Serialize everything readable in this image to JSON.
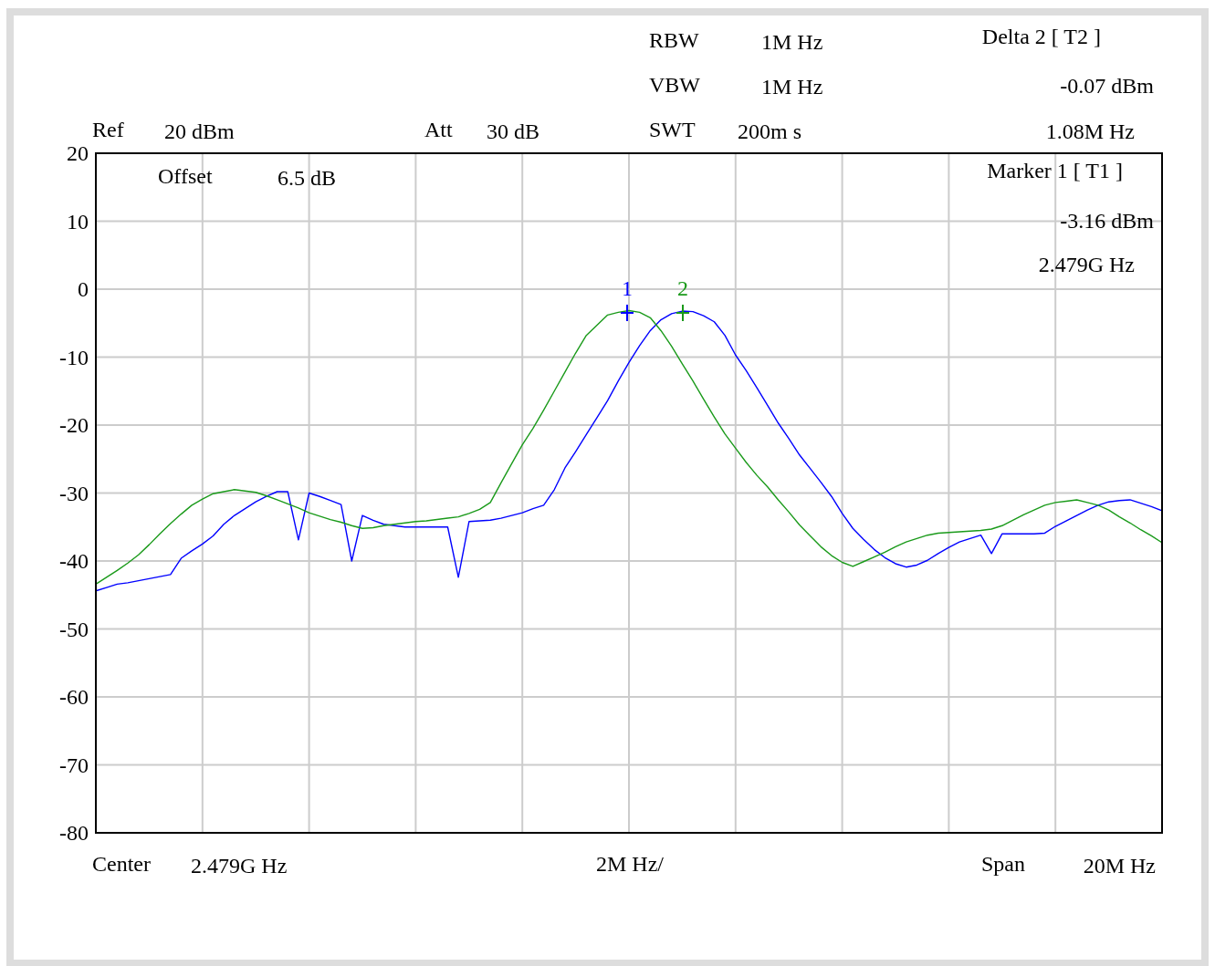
{
  "chart_data": {
    "type": "line",
    "categories": [
      null,
      null,
      null,
      null,
      null,
      null,
      null,
      null,
      null,
      null,
      null,
      null,
      null,
      null,
      null,
      null,
      null,
      null,
      null,
      null,
      null,
      null,
      null,
      null,
      null,
      null,
      null,
      null,
      null,
      null,
      null,
      null,
      null,
      null,
      null,
      null,
      null,
      null,
      null,
      null,
      null,
      null,
      null,
      null,
      null,
      null,
      null,
      null,
      null,
      null,
      null,
      null,
      null,
      null,
      null,
      null,
      null,
      null,
      null,
      null,
      null,
      null,
      null,
      null,
      null,
      null,
      null,
      null,
      null,
      null,
      null,
      null,
      null,
      null,
      null,
      null,
      null,
      null,
      null,
      null,
      null,
      null,
      null,
      null,
      null,
      null,
      null,
      null,
      null,
      null,
      null,
      null,
      null,
      null,
      null,
      null,
      null,
      null,
      null,
      null,
      null
    ],
    "ylim": [
      -80,
      20
    ],
    "yticks": [
      20,
      10,
      0,
      -10,
      -20,
      -30,
      -40,
      -50,
      -60,
      -70,
      -80
    ],
    "grid": true,
    "line_style": "solid",
    "series": [
      {
        "color": "#0000ff",
        "values": [
          -44.4,
          -43.9,
          -43.4,
          -43.2,
          -42.9,
          -42.6,
          -42.3,
          -42,
          -39.6,
          -38.5,
          -37.5,
          -36.3,
          -34.6,
          -33.3,
          -32.3,
          -31.3,
          -30.5,
          -29.8,
          -29.8,
          -36.9,
          -30,
          -30.5,
          -31.1,
          -31.7,
          -40,
          -33.3,
          -34,
          -34.6,
          -34.8,
          -35,
          -35,
          -35,
          -35,
          -35,
          -42.4,
          -34.2,
          -34.1,
          -34,
          -33.7,
          -33.3,
          -32.9,
          -32.3,
          -31.8,
          -29.5,
          -26.3,
          -23.9,
          -21.4,
          -18.9,
          -16.4,
          -13.5,
          -10.8,
          -8.3,
          -6.1,
          -4.5,
          -3.6,
          -3.23,
          -3.3,
          -3.9,
          -4.8,
          -6.8,
          -9.7,
          -12,
          -14.5,
          -17.1,
          -19.7,
          -22,
          -24.4,
          -26.4,
          -28.4,
          -30.5,
          -33,
          -35.2,
          -36.8,
          -38.3,
          -39.5,
          -40.4,
          -40.9,
          -40.6,
          -39.9,
          -38.9,
          -38,
          -37.2,
          -36.7,
          -36.2,
          -38.9,
          -36,
          -36,
          -36,
          -36,
          -35.9,
          -34.9,
          -34.1,
          -33.3,
          -32.5,
          -31.8,
          -31.3,
          -31.1,
          -31,
          -31.5,
          -32,
          -32.6
        ]
      },
      {
        "color": "#1a9a1a",
        "values": [
          -43.4,
          -42.4,
          -41.4,
          -40.3,
          -39.1,
          -37.6,
          -36,
          -34.5,
          -33.1,
          -31.8,
          -30.9,
          -30.1,
          -29.8,
          -29.5,
          -29.7,
          -29.9,
          -30.4,
          -31,
          -31.6,
          -32.2,
          -32.9,
          -33.4,
          -33.9,
          -34.3,
          -34.8,
          -35.2,
          -35.1,
          -34.8,
          -34.6,
          -34.4,
          -34.2,
          -34.1,
          -33.9,
          -33.7,
          -33.5,
          -33,
          -32.4,
          -31.4,
          -28.5,
          -25.7,
          -22.9,
          -20.5,
          -17.8,
          -15,
          -12.2,
          -9.4,
          -6.8,
          -5.3,
          -3.8,
          -3.4,
          -3.16,
          -3.4,
          -4.2,
          -6.1,
          -8.4,
          -11,
          -13.5,
          -16.2,
          -18.8,
          -21.3,
          -23.4,
          -25.5,
          -27.4,
          -29.1,
          -31,
          -32.8,
          -34.7,
          -36.3,
          -37.9,
          -39.2,
          -40.2,
          -40.8,
          -40.1,
          -39.4,
          -38.7,
          -37.9,
          -37.2,
          -36.7,
          -36.2,
          -35.9,
          -35.8,
          -35.7,
          -35.6,
          -35.5,
          -35.3,
          -34.8,
          -34,
          -33.2,
          -32.5,
          -31.8,
          -31.4,
          -31.2,
          -31,
          -31.4,
          -31.8,
          -32.5,
          -33.5,
          -34.4,
          -35.4,
          -36.3,
          -37.3
        ]
      }
    ],
    "annotations": [
      "Ref",
      "20 dBm",
      "Att",
      "30 dB",
      "RBW",
      "1M Hz",
      "VBW",
      "1M Hz",
      "SWT",
      "200m s",
      "Delta 2 [ T2 ]",
      "-0.07 dBm",
      "1.08M Hz",
      "Offset",
      "6.5 dB",
      "Marker 1 [ T1 ]",
      "-3.16 dBm",
      "2.479G Hz",
      "Center",
      "2.479G Hz",
      "2M Hz/",
      "Span",
      "20M Hz",
      "1",
      "2"
    ]
  }
}
